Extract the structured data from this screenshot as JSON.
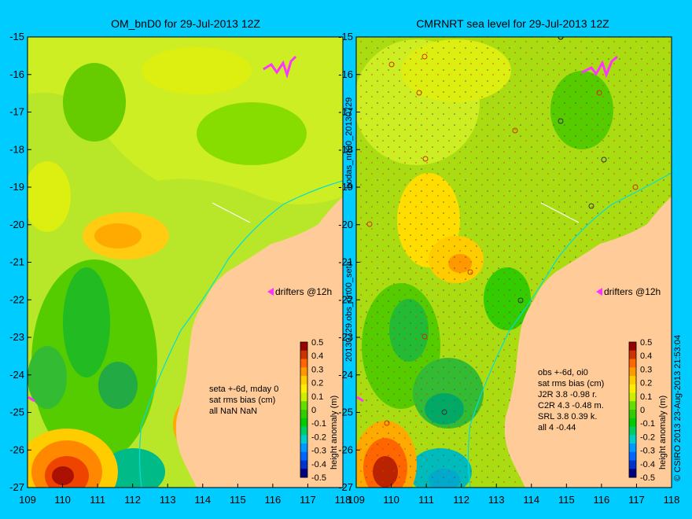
{
  "colors": {
    "background": "#00ccff",
    "land": "#ffcc99",
    "coast": "#00e0e0",
    "drifter": "#ff33ff",
    "scale": [
      "#000080",
      "#0033cc",
      "#0066ff",
      "#0099ff",
      "#00cccc",
      "#00cc66",
      "#00cc00",
      "#33cc00",
      "#66dd00",
      "#ccee00",
      "#ffee00",
      "#ffcc00",
      "#ff9900",
      "#ff6600",
      "#cc3300",
      "#990000"
    ]
  },
  "left_panel": {
    "title": "OM_bnD0 for 29-Jul-2013 12Z",
    "drifters_label": "drifters @12h",
    "legend_lines": [
      "seta +-6d, mday 0",
      "sat rms bias (cm)",
      "all NaN NaN"
    ]
  },
  "right_panel": {
    "title": "CMRNRT sea level  for 29-Jul-2013 12Z",
    "drifters_label": "drifters @12h",
    "legend_lines": [
      "obs +-6d, oi0",
      "sat rms bias (cm)",
      "J2R   3.8 -0.98 r.",
      "C2R   4.3 -0.48 m.",
      "SRL   3.8 0.39 k.",
      "all   4 -0.44"
    ]
  },
  "axes": {
    "x_ticks": [
      "109",
      "110",
      "111",
      "112",
      "113",
      "114",
      "115",
      "116",
      "117",
      "118"
    ],
    "y_ticks": [
      "-15",
      "-16",
      "-17",
      "-18",
      "-19",
      "-20",
      "-21",
      "-22",
      "-23",
      "-24",
      "-25",
      "-26",
      "-27"
    ]
  },
  "colorbar": {
    "label": "height anomaly (m)",
    "ticks": [
      "0.5",
      "0.4",
      "0.3",
      "0.2",
      "0.1",
      "0",
      "-0.1",
      "-0.2",
      "-0.3",
      "-0.4",
      "-0.5"
    ]
  },
  "side_text_left": "20130729.obs_nrt00_seta",
  "side_text_left_top": "bodas_nrt00_20130729",
  "side_text_right": "© CSIRO 2013   23-Aug-2013 21:53:04"
}
